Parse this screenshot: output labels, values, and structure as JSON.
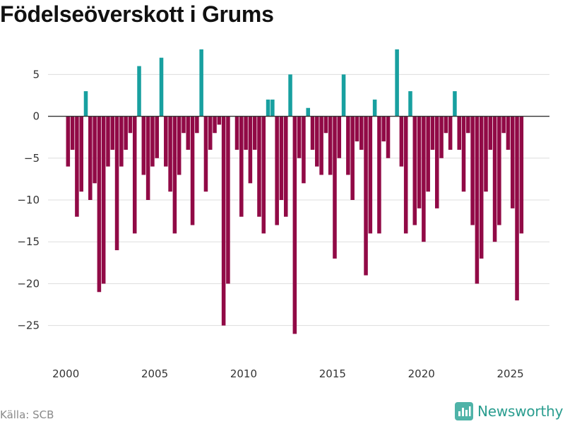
{
  "chart_data": {
    "type": "bar",
    "title": "Födelseöverskott i Grums",
    "xlabel": "",
    "ylabel": "",
    "ylim": [
      -29,
      9
    ],
    "xlim": [
      1999,
      2027.2
    ],
    "x_ticks": [
      2000,
      2005,
      2010,
      2015,
      2020,
      2025
    ],
    "y_ticks": [
      5,
      0,
      -5,
      -10,
      -15,
      -20,
      -25
    ],
    "bar_width_years": 0.22,
    "first_x": 2000.125,
    "step_years": 0.25,
    "positive_color": "#18a0a0",
    "negative_color": "#910a46",
    "series": [
      {
        "name": "Födelseöverskott",
        "values": [
          -6,
          -4,
          -12,
          -9,
          3,
          -10,
          -8,
          -21,
          -20,
          -6,
          -4,
          -16,
          -6,
          -4,
          -2,
          -14,
          6,
          -7,
          -10,
          -6,
          -5,
          7,
          -6,
          -9,
          -14,
          -7,
          -2,
          -4,
          -13,
          -2,
          8,
          -9,
          -4,
          -2,
          -1,
          -25,
          -20,
          0,
          -4,
          -12,
          -4,
          -8,
          -4,
          -12,
          -14,
          2,
          2,
          -13,
          -10,
          -12,
          5,
          -26,
          -5,
          -8,
          1,
          -4,
          -6,
          -7,
          -2,
          -7,
          -17,
          -5,
          5,
          -7,
          -10,
          -3,
          -4,
          -19,
          -14,
          2,
          -14,
          -3,
          -5,
          0,
          8,
          -6,
          -14,
          3,
          -13,
          -11,
          -15,
          -9,
          -4,
          -11,
          -5,
          -2,
          -4,
          3,
          -4,
          -9,
          -2,
          -13,
          -20,
          -17,
          -9,
          -4,
          -15,
          -13,
          -2,
          -4,
          -11,
          -22,
          -14
        ]
      }
    ]
  },
  "source": "Källa: SCB",
  "brand": {
    "name": "Newsworthy",
    "icon": "bar-chart-logo-icon",
    "color": "#2a9d8f"
  }
}
